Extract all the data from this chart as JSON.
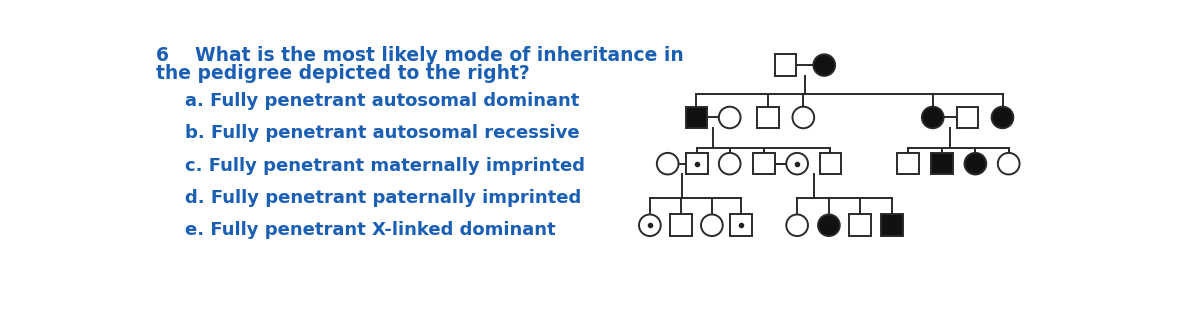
{
  "bg_color": "#ffffff",
  "text_color": "#1a5fb4",
  "question_number": "6",
  "question_line1": "6    What is the most likely mode of inheritance in",
  "question_line2": "the pedigree depicted to the right?",
  "options": [
    "a. Fully penetrant autosomal dominant",
    "b. Fully penetrant autosomal recessive",
    "c. Fully penetrant maternally imprinted",
    "d. Fully penetrant paternally imprinted",
    "e. Fully penetrant X-linked dominant"
  ],
  "line_color": "#2a2a2a",
  "filled_color": "#111111",
  "unfilled_color": "#ffffff",
  "carrier_dot_color": "#222222",
  "sym_half": 0.026,
  "lw": 1.4
}
